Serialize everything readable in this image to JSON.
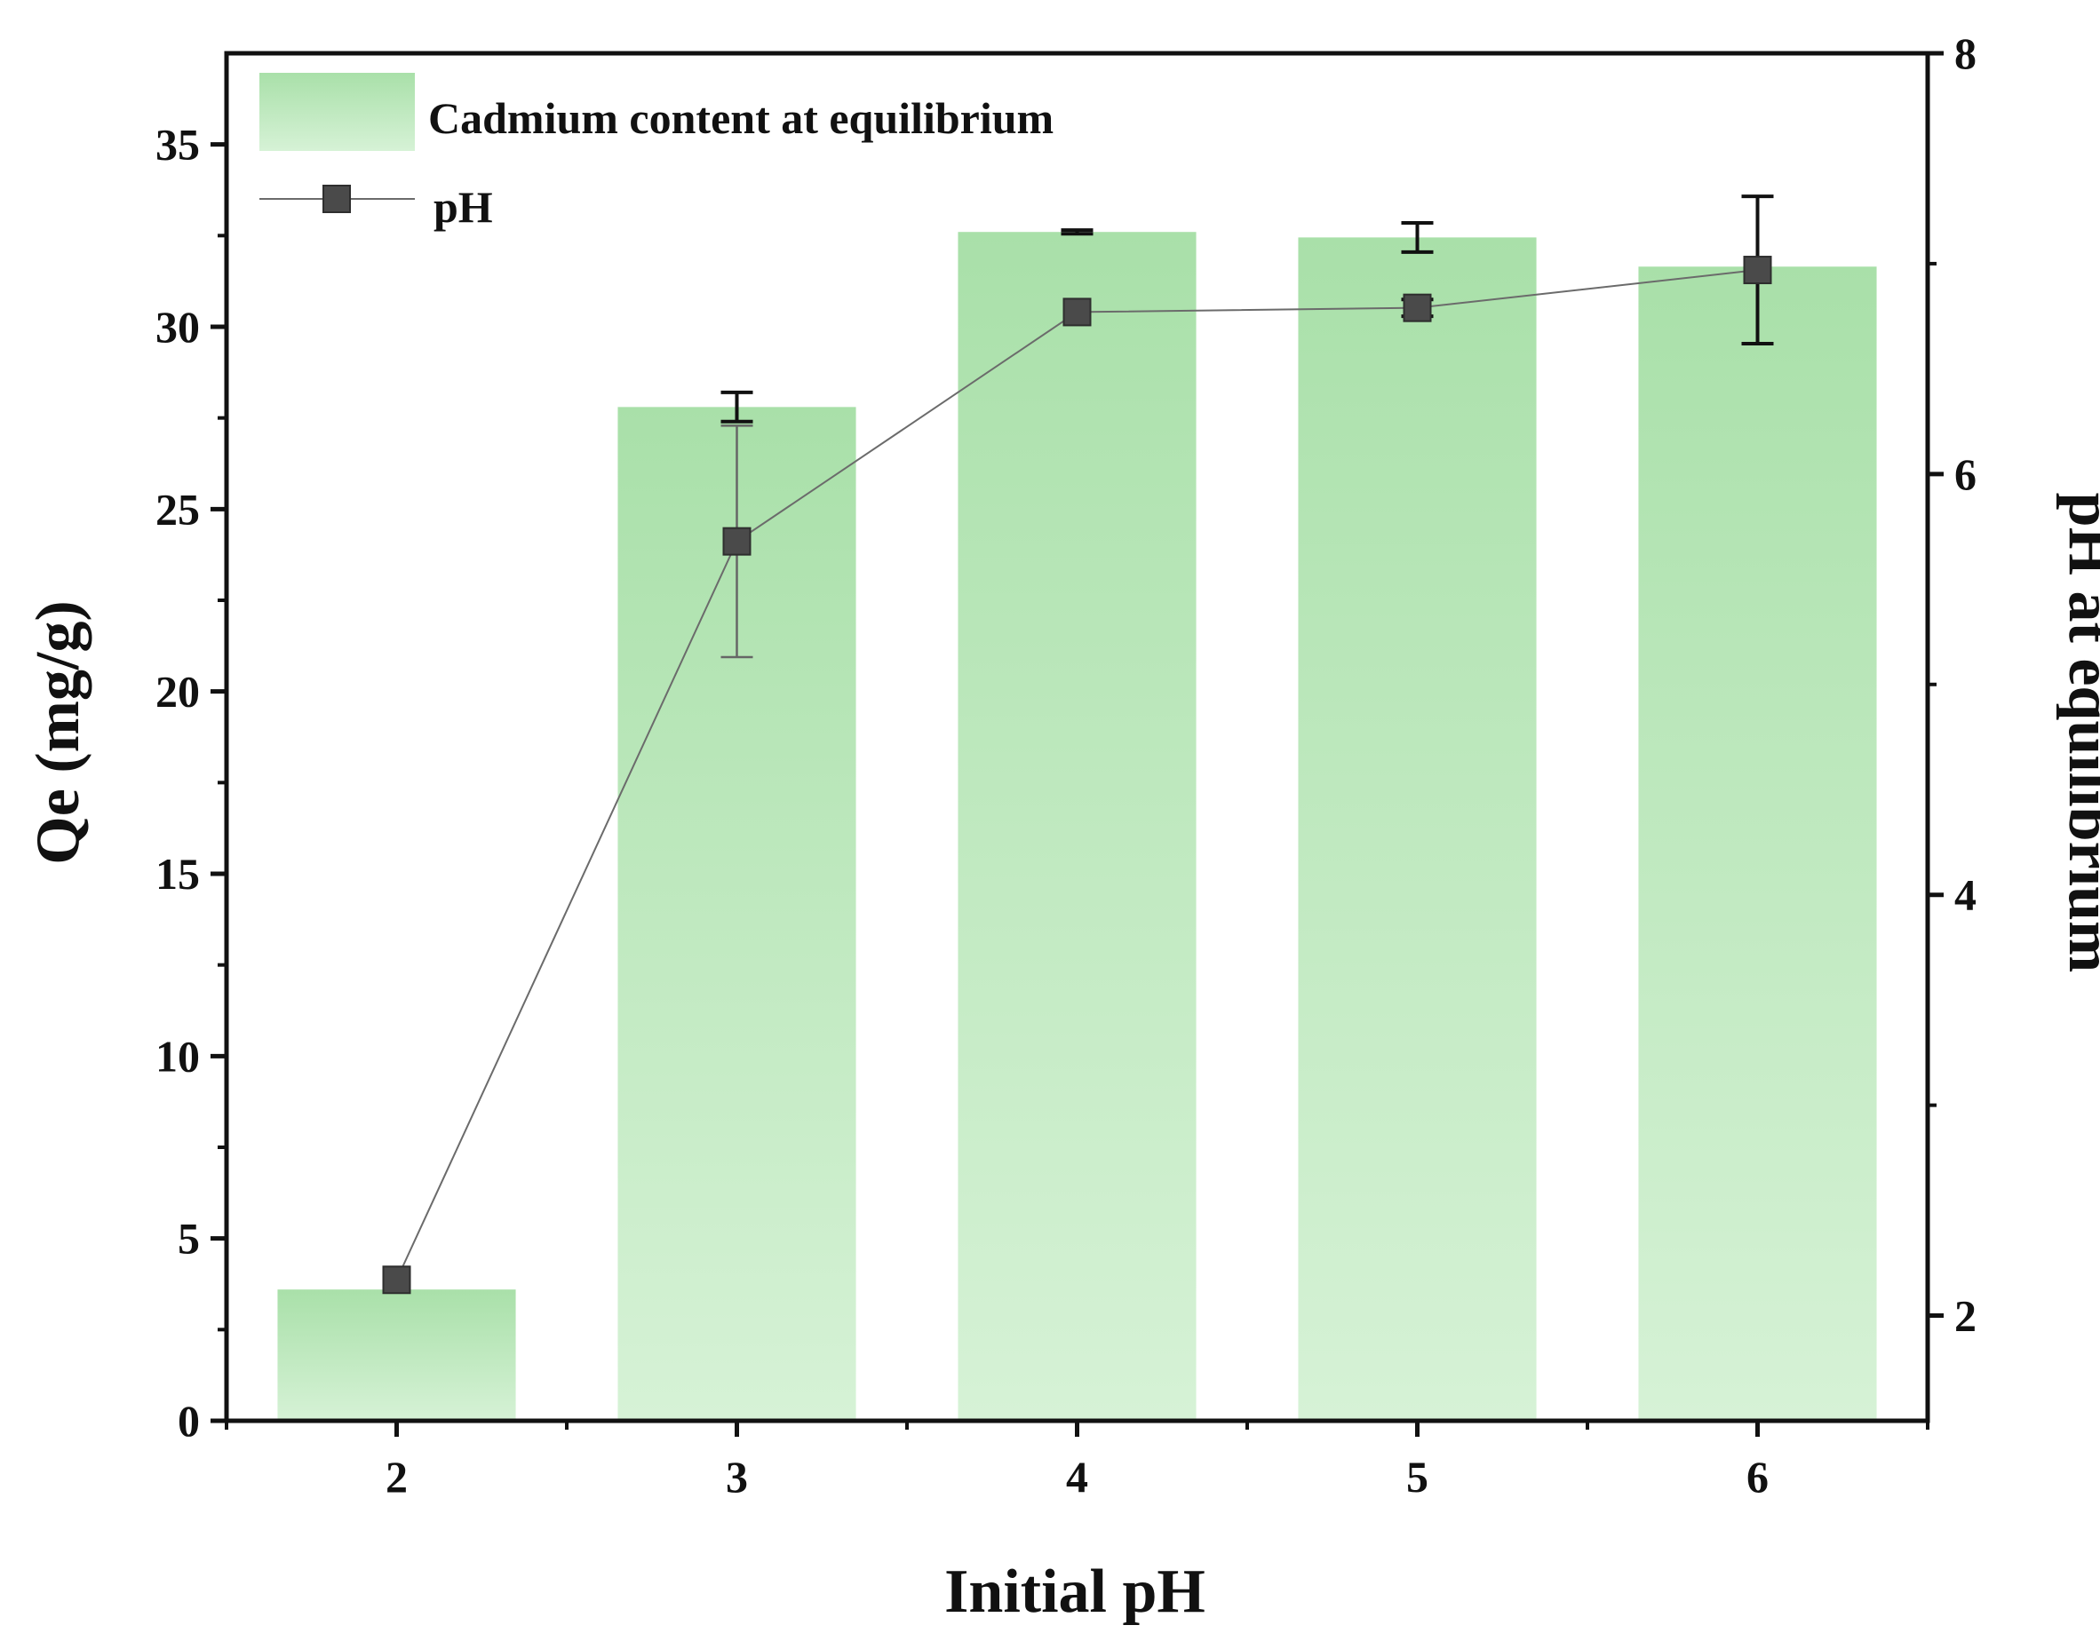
{
  "chart_data": {
    "type": "bar+line",
    "xlabel": "Initial pH",
    "ylabel_left": "Qe (mg/g)",
    "ylabel_right": "pH at equilibrium",
    "categories": [
      "2",
      "3",
      "4",
      "5",
      "6"
    ],
    "left_axis": {
      "ylim": [
        0,
        37.5
      ],
      "ticks": [
        0,
        5,
        10,
        15,
        20,
        25,
        30,
        35
      ]
    },
    "right_axis": {
      "ylim": [
        1.5,
        8
      ],
      "ticks": [
        2,
        4,
        6,
        8
      ],
      "minor_ticks": [
        3,
        5,
        7
      ]
    },
    "series": [
      {
        "name": "Cadmium content at equilibrium",
        "kind": "bar",
        "axis": "left",
        "values": [
          3.6,
          27.8,
          32.6,
          32.45,
          31.65
        ],
        "errors": [
          0,
          0.4,
          0.05,
          0.4,
          0
        ]
      },
      {
        "name": "pH",
        "kind": "line",
        "axis": "right",
        "values": [
          2.17,
          5.68,
          6.77,
          6.79,
          6.97
        ],
        "errors": [
          0,
          0.55,
          0,
          0.04,
          0.35
        ]
      }
    ],
    "legend": {
      "position": "top-left"
    },
    "colors": {
      "bar_top": "#a9e0a9",
      "bar_bottom": "#d6f2d6",
      "line": "#6b6b6b",
      "marker": "#4a4a4a",
      "axis": "#111111"
    }
  }
}
